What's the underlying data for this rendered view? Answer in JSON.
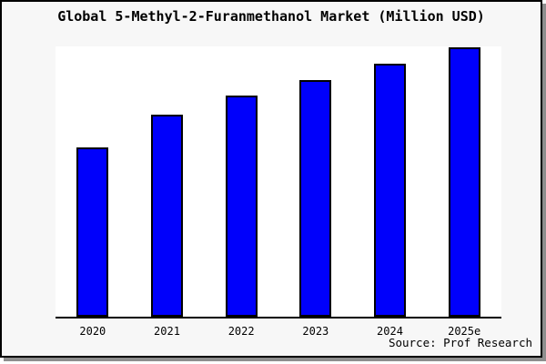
{
  "window": {
    "background_color": "#f7f7f7",
    "plot_background_color": "#ffffff",
    "frame_border_color": "#000000",
    "shadow_color": "#8e8e8e"
  },
  "header": {
    "title": "Global 5-Methyl-2-Furanmethanol Market (Million USD)"
  },
  "footer": {
    "source_credit": "Source: Prof Research"
  },
  "chart_data": {
    "type": "bar",
    "title": "Global 5-Methyl-2-Furanmethanol Market (Million USD)",
    "categories": [
      "2020",
      "2021",
      "2022",
      "2023",
      "2024",
      "2025e"
    ],
    "values": [
      63,
      75,
      82,
      88,
      94,
      100
    ],
    "value_note": "y-axis is unlabeled; values are relative bar heights as % of tallest bar (2025e = 100)",
    "xlabel": "",
    "ylabel": "",
    "ylim": [
      0,
      100
    ],
    "grid": false,
    "legend": false,
    "bar_color": "#0000fb",
    "bar_border_color": "#000000",
    "axis_line_color": "#000000"
  }
}
